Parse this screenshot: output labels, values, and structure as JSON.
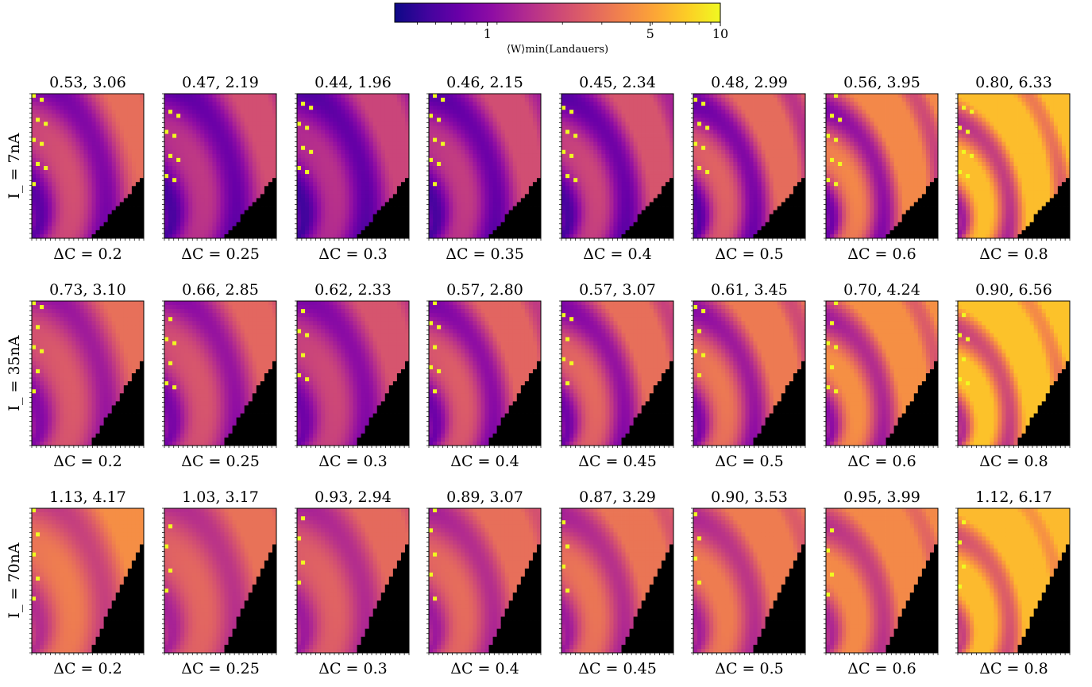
{
  "colorbar": {
    "label": "⟨W⟩min(Landauers)",
    "tick_labels": [
      "1",
      "5",
      "10"
    ],
    "tick_values": [
      1,
      5,
      10
    ],
    "range": [
      0.4,
      10
    ],
    "scale": "log",
    "colormap": "plasma"
  },
  "chart_data": {
    "type": "heatmap",
    "description_rows": "I_",
    "rows": [
      {
        "label": "I_ = 7nA",
        "panels": [
          {
            "title": "0.53, 3.06",
            "xlabel": "ΔC = 0.2",
            "min": 0.53,
            "max": 3.06
          },
          {
            "title": "0.47, 2.19",
            "xlabel": "ΔC = 0.25",
            "min": 0.47,
            "max": 2.19
          },
          {
            "title": "0.44, 1.96",
            "xlabel": "ΔC = 0.3",
            "min": 0.44,
            "max": 1.96
          },
          {
            "title": "0.46, 2.15",
            "xlabel": "ΔC = 0.35",
            "min": 0.46,
            "max": 2.15
          },
          {
            "title": "0.45, 2.34",
            "xlabel": "ΔC = 0.4",
            "min": 0.45,
            "max": 2.34
          },
          {
            "title": "0.48, 2.99",
            "xlabel": "ΔC = 0.5",
            "min": 0.48,
            "max": 2.99
          },
          {
            "title": "0.56, 3.95",
            "xlabel": "ΔC = 0.6",
            "min": 0.56,
            "max": 3.95
          },
          {
            "title": "0.80, 6.33",
            "xlabel": "ΔC = 0.8",
            "min": 0.8,
            "max": 6.33
          }
        ]
      },
      {
        "label": "I_ = 35nA",
        "panels": [
          {
            "title": "0.73, 3.10",
            "xlabel": "ΔC = 0.2",
            "min": 0.73,
            "max": 3.1
          },
          {
            "title": "0.66, 2.85",
            "xlabel": "ΔC = 0.25",
            "min": 0.66,
            "max": 2.85
          },
          {
            "title": "0.62, 2.33",
            "xlabel": "ΔC = 0.3",
            "min": 0.62,
            "max": 2.33
          },
          {
            "title": "0.57, 2.80",
            "xlabel": "ΔC = 0.4",
            "min": 0.57,
            "max": 2.8
          },
          {
            "title": "0.57, 3.07",
            "xlabel": "ΔC = 0.45",
            "min": 0.57,
            "max": 3.07
          },
          {
            "title": "0.61, 3.45",
            "xlabel": "ΔC = 0.5",
            "min": 0.61,
            "max": 3.45
          },
          {
            "title": "0.70, 4.24",
            "xlabel": "ΔC = 0.6",
            "min": 0.7,
            "max": 4.24
          },
          {
            "title": "0.90, 6.56",
            "xlabel": "ΔC = 0.8",
            "min": 0.9,
            "max": 6.56
          }
        ]
      },
      {
        "label": "I_ = 70nA",
        "panels": [
          {
            "title": "1.13, 4.17",
            "xlabel": "ΔC = 0.2",
            "min": 1.13,
            "max": 4.17
          },
          {
            "title": "1.03, 3.17",
            "xlabel": "ΔC = 0.25",
            "min": 1.03,
            "max": 3.17
          },
          {
            "title": "0.93, 2.94",
            "xlabel": "ΔC = 0.3",
            "min": 0.93,
            "max": 2.94
          },
          {
            "title": "0.89, 3.07",
            "xlabel": "ΔC = 0.4",
            "min": 0.89,
            "max": 3.07
          },
          {
            "title": "0.87, 3.29",
            "xlabel": "ΔC = 0.45",
            "min": 0.87,
            "max": 3.29
          },
          {
            "title": "0.90, 3.53",
            "xlabel": "ΔC = 0.5",
            "min": 0.9,
            "max": 3.53
          },
          {
            "title": "0.95, 3.99",
            "xlabel": "ΔC = 0.6",
            "min": 0.95,
            "max": 3.99
          },
          {
            "title": "1.12, 6.17",
            "xlabel": "ΔC = 0.8",
            "min": 1.12,
            "max": 6.17
          }
        ]
      }
    ]
  }
}
